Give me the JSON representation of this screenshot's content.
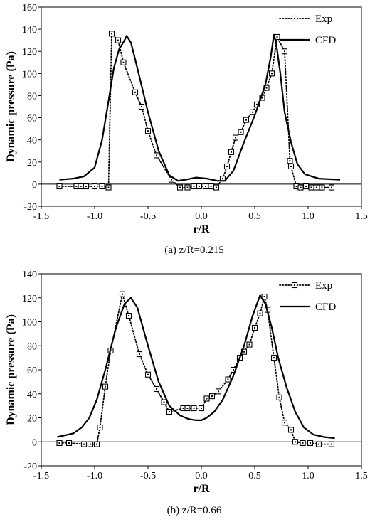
{
  "chart_data": [
    {
      "type": "line",
      "caption": "(a) z/R=0.215",
      "xlabel": "r/R",
      "ylabel": "Dynamic pressure  (Pa)",
      "xlim": [
        -1.5,
        1.5
      ],
      "ylim": [
        -20,
        160
      ],
      "xticks": [
        -1.5,
        -1,
        -0.5,
        0,
        0.5,
        1,
        1.5
      ],
      "xtick_labels": [
        "-1.5",
        "-1.0",
        "-0.5",
        "0.0",
        "0.5",
        "1.0",
        "1.5"
      ],
      "yticks": [
        -20,
        0,
        20,
        40,
        60,
        80,
        100,
        120,
        140,
        160
      ],
      "ytick_labels": [
        "-20",
        "0",
        "20",
        "40",
        "60",
        "80",
        "100",
        "120",
        "140",
        "160"
      ],
      "legend_position": "top-right",
      "series": [
        {
          "name": "Exp",
          "style": "dotted-square",
          "x": [
            -1.33,
            -1.17,
            -1.13,
            -1.08,
            -1.0,
            -0.93,
            -0.87,
            -0.84,
            -0.78,
            -0.73,
            -0.62,
            -0.56,
            -0.5,
            -0.42,
            -0.28,
            -0.2,
            -0.13,
            -0.07,
            -0.02,
            0.04,
            0.09,
            0.14,
            0.2,
            0.24,
            0.28,
            0.32,
            0.37,
            0.42,
            0.48,
            0.52,
            0.57,
            0.61,
            0.66,
            0.71,
            0.78,
            0.83,
            0.84,
            0.89,
            0.93,
            0.98,
            1.03,
            1.08,
            1.13,
            1.22
          ],
          "y": [
            -2,
            -2,
            -2,
            -2,
            -2,
            -2,
            -3,
            136,
            130,
            110,
            83,
            70,
            48,
            26,
            4,
            -3,
            -3,
            -2,
            -2,
            -2,
            -2,
            -3,
            5,
            16,
            29,
            42,
            47,
            58,
            65,
            72,
            78,
            87,
            100,
            133,
            120,
            21,
            16,
            -2,
            -3,
            -2,
            -3,
            -3,
            -3,
            -3
          ]
        },
        {
          "name": "CFD",
          "style": "solid",
          "x": [
            -1.33,
            -1.2,
            -1.1,
            -1.0,
            -0.93,
            -0.87,
            -0.82,
            -0.77,
            -0.72,
            -0.7,
            -0.66,
            -0.6,
            -0.5,
            -0.4,
            -0.3,
            -0.22,
            -0.15,
            -0.05,
            0.05,
            0.15,
            0.22,
            0.3,
            0.4,
            0.5,
            0.6,
            0.65,
            0.68,
            0.7,
            0.74,
            0.78,
            0.84,
            0.9,
            0.97,
            1.1,
            1.3
          ],
          "y": [
            4,
            5,
            7,
            15,
            40,
            75,
            105,
            122,
            130,
            134,
            128,
            105,
            65,
            30,
            8,
            3,
            4,
            6,
            5,
            3,
            3,
            12,
            38,
            62,
            90,
            115,
            135,
            128,
            100,
            65,
            38,
            18,
            9,
            5,
            4
          ]
        }
      ]
    },
    {
      "type": "line",
      "caption": "(b) z/R=0.66",
      "xlabel": "r/R",
      "ylabel": "Dynamic pressure  (Pa)",
      "xlim": [
        -1.5,
        1.5
      ],
      "ylim": [
        -20,
        140
      ],
      "xticks": [
        -1.5,
        -1,
        -0.5,
        0,
        0.5,
        1,
        1.5
      ],
      "xtick_labels": [
        "-1.5",
        "-1.0",
        "-0.5",
        "0.0",
        "0.5",
        "1.0",
        "1.5"
      ],
      "yticks": [
        -20,
        0,
        20,
        40,
        60,
        80,
        100,
        120,
        140
      ],
      "ytick_labels": [
        "-20",
        "0",
        "20",
        "40",
        "60",
        "80",
        "100",
        "120",
        "140"
      ],
      "legend_position": "top-right",
      "series": [
        {
          "name": "Exp",
          "style": "dotted-square",
          "x": [
            -1.33,
            -1.24,
            -1.1,
            -1.04,
            -0.98,
            -0.95,
            -0.9,
            -0.85,
            -0.74,
            -0.68,
            -0.58,
            -0.5,
            -0.42,
            -0.35,
            -0.3,
            -0.17,
            -0.13,
            -0.07,
            0.0,
            0.05,
            0.1,
            0.16,
            0.25,
            0.3,
            0.36,
            0.4,
            0.45,
            0.5,
            0.55,
            0.59,
            0.62,
            0.68,
            0.73,
            0.78,
            0.84,
            0.88,
            0.95,
            1.02,
            1.1,
            1.22
          ],
          "y": [
            -1,
            -1,
            -2,
            -2,
            -2,
            12,
            46,
            76,
            123,
            105,
            73,
            56,
            44,
            33,
            25,
            28,
            28,
            28,
            28,
            36,
            38,
            42,
            52,
            60,
            70,
            75,
            81,
            95,
            107,
            121,
            110,
            70,
            37,
            16,
            10,
            0,
            -1,
            -1,
            -2,
            -2
          ]
        },
        {
          "name": "CFD",
          "style": "solid",
          "x": [
            -1.35,
            -1.2,
            -1.12,
            -1.05,
            -0.98,
            -0.9,
            -0.8,
            -0.72,
            -0.66,
            -0.6,
            -0.5,
            -0.4,
            -0.3,
            -0.2,
            -0.12,
            -0.05,
            0.0,
            0.05,
            0.12,
            0.2,
            0.3,
            0.4,
            0.48,
            0.55,
            0.6,
            0.66,
            0.72,
            0.8,
            0.88,
            0.96,
            1.05,
            1.15,
            1.25
          ],
          "y": [
            4,
            7,
            12,
            20,
            35,
            60,
            95,
            115,
            120,
            112,
            80,
            50,
            30,
            22,
            19,
            18,
            18,
            20,
            25,
            35,
            55,
            80,
            105,
            122,
            115,
            95,
            70,
            45,
            25,
            12,
            6,
            4,
            3
          ]
        }
      ]
    }
  ]
}
